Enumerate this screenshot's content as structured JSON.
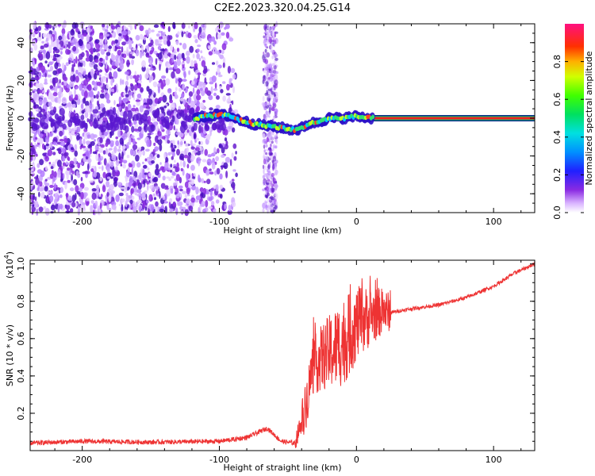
{
  "title": "C2E2.2023.320.04.25.G14",
  "chart_data": [
    {
      "type": "heatmap",
      "xlabel": "Height of straight line (km)",
      "ylabel": "Frequency (Hz)",
      "xlim": [
        -238,
        130
      ],
      "ylim": [
        -50,
        50
      ],
      "xticks": [
        -200,
        -100,
        0,
        100
      ],
      "yticks": [
        -40,
        -20,
        0,
        20,
        40
      ],
      "colorbar": {
        "label": "Normalized spectral amplitude",
        "range": [
          0,
          1
        ],
        "ticks": [
          0.0,
          0.2,
          0.4,
          0.6,
          0.8
        ]
      },
      "trace": [
        {
          "x": -118,
          "y": 0
        },
        {
          "x": -110,
          "y": 1
        },
        {
          "x": -100,
          "y": 2
        },
        {
          "x": -92,
          "y": 1
        },
        {
          "x": -85,
          "y": -1
        },
        {
          "x": -75,
          "y": -3
        },
        {
          "x": -65,
          "y": -4
        },
        {
          "x": -55,
          "y": -5
        },
        {
          "x": -48,
          "y": -6
        },
        {
          "x": -42,
          "y": -6
        },
        {
          "x": -35,
          "y": -3
        },
        {
          "x": -28,
          "y": -2
        },
        {
          "x": -20,
          "y": 0
        },
        {
          "x": -10,
          "y": 0
        },
        {
          "x": 0,
          "y": 1
        },
        {
          "x": 10,
          "y": 0
        },
        {
          "x": 130,
          "y": 0
        }
      ],
      "noise_region": {
        "x_min": -238,
        "x_max": -95
      },
      "noise_band": {
        "x_min": -68,
        "x_max": -58
      }
    },
    {
      "type": "line",
      "xlabel": "Height of straight line (km)",
      "ylabel": "SNR (10 * v/v)",
      "y_multiplier": "(x10",
      "y_multiplier_exp": "4",
      "y_multiplier_close": ")",
      "xlim": [
        -238,
        130
      ],
      "ylim": [
        0,
        1.02
      ],
      "xticks": [
        -200,
        -100,
        0,
        100
      ],
      "yticks": [
        0.2,
        0.4,
        0.6,
        0.8,
        1.0
      ],
      "series": [
        {
          "color": "#ee3333",
          "x": [
            -238,
            -200,
            -150,
            -100,
            -80,
            -65,
            -55,
            -45,
            -38,
            -32,
            -25,
            -15,
            -5,
            0,
            10,
            20,
            25,
            40,
            60,
            80,
            100,
            115,
            130
          ],
          "y": [
            0.04,
            0.05,
            0.045,
            0.05,
            0.07,
            0.12,
            0.05,
            0.04,
            0.2,
            0.45,
            0.5,
            0.55,
            0.62,
            0.68,
            0.72,
            0.75,
            0.74,
            0.76,
            0.78,
            0.82,
            0.88,
            0.95,
            1.0
          ]
        }
      ]
    }
  ]
}
